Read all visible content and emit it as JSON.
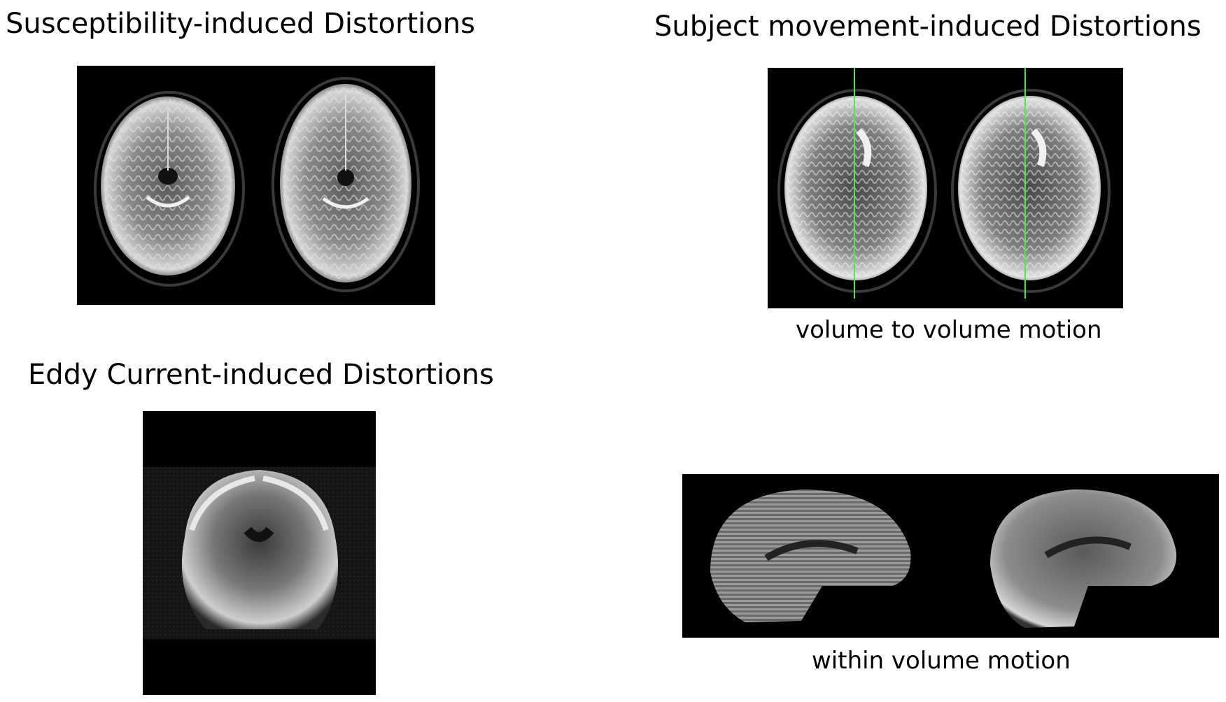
{
  "panels": {
    "susceptibility": {
      "title": "Susceptibility-induced Distortions",
      "image": "axial brain MRI slices pair"
    },
    "subject_movement": {
      "title": "Subject movement-induced Distortions",
      "volume_caption": "volume to volume motion",
      "within_caption": "within volume motion",
      "volume_image": "axial brain MRI slices with midline marker",
      "within_image": "sagittal brain MRI slices pair"
    },
    "eddy_current": {
      "title": "Eddy Current-induced Distortions",
      "image": "coronal brain MRI slice"
    }
  },
  "colors": {
    "background": "#ffffff",
    "image_background": "#000000",
    "midline_marker": "#4ee84a"
  }
}
